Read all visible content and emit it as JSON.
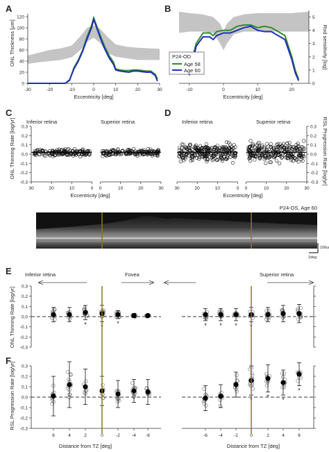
{
  "panels": {
    "A": {
      "label": "A",
      "ylabel": "ONL Thickness [µm]",
      "xlabel": "Eccentricity [deg]",
      "xticks": [
        "-30",
        "-20",
        "-10",
        "0",
        "10",
        "20",
        "30"
      ],
      "yticks": [
        "0",
        "20",
        "40",
        "60",
        "80",
        "100",
        "120"
      ]
    },
    "B": {
      "label": "B",
      "ylabel": "Rod sensitivity [log]",
      "xlabel": "Eccentricity [deg]",
      "xticks": [
        "-10",
        "0",
        "10",
        "20"
      ],
      "yticks": [
        "0",
        "1",
        "2",
        "3",
        "4",
        "5"
      ],
      "legend": {
        "title": "P24-OD",
        "items": [
          "Age 58",
          "Age 60"
        ]
      }
    },
    "C": {
      "label": "C",
      "ylabel": "ONL Thinning Rate [log/yr]",
      "xlabel": "Eccentricity [deg]",
      "region_left": "Inferior retina",
      "region_right": "Superior retina",
      "xticks": [
        "30",
        "20",
        "10",
        "0",
        "10",
        "20",
        "30"
      ],
      "yticks": [
        "-0.3",
        "-0.2",
        "-0.1",
        "0.0",
        "0.1",
        "0.2",
        "0.3"
      ]
    },
    "D": {
      "label": "D",
      "ylabel": "RSL Progression Rate [log/yr]",
      "xlabel": "Eccentricity [deg]",
      "region_left": "Inferior retina",
      "region_right": "Superior retina",
      "xticks": [
        "30",
        "20",
        "10",
        "0",
        "10",
        "20",
        "30"
      ],
      "yticks": [
        "-0.3",
        "-0.2",
        "-0.1",
        "0.0",
        "0.1",
        "0.2",
        "0.3"
      ]
    },
    "OCT": {
      "caption": "P24-OS, Age 60",
      "scale_um": "100um",
      "scale_deg": "1deg"
    },
    "E": {
      "label": "E",
      "ylabel": "ONL Thinning Rate [log/yr]",
      "region_left": "Inferior retina",
      "region_center": "Fovea",
      "region_right": "Superior retina",
      "yticks": [
        "-0.3",
        "-0.2",
        "-0.1",
        "0.0",
        "0.1",
        "0.2",
        "0.3"
      ]
    },
    "F": {
      "label": "F",
      "ylabel": "RSL Progression Rate [log/yr]",
      "xlabel_left": "Distance from TZ [deg]",
      "xlabel_right": "Distance from TZ [deg]",
      "xticks_left": [
        "6",
        "4",
        "2",
        "0",
        "-2",
        "-4",
        "-6"
      ],
      "xticks_right": [
        "-6",
        "-4",
        "-2",
        "0",
        "2",
        "4",
        "6"
      ],
      "yticks": [
        "-0.3",
        "-0.2",
        "-0.1",
        "0.0",
        "0.1",
        "0.2",
        "0.3"
      ]
    }
  },
  "colors": {
    "age58": "#2e8b2e",
    "age60": "#1f2fb5",
    "band": "#c4c4c4",
    "tz_line": "#8a7a1a"
  },
  "chart_data": [
    {
      "id": "A",
      "type": "line",
      "xlim": [
        -30,
        30
      ],
      "ylim": [
        0,
        125
      ],
      "normal_band": {
        "x": [
          -30,
          -25,
          -20,
          -15,
          -10,
          -6,
          -3,
          0,
          3,
          6,
          10,
          15,
          20,
          25,
          30
        ],
        "lower": [
          35,
          38,
          40,
          42,
          47,
          60,
          75,
          82,
          72,
          55,
          48,
          45,
          42,
          42,
          42
        ],
        "upper": [
          50,
          55,
          60,
          63,
          68,
          85,
          100,
          104,
          98,
          85,
          70,
          66,
          64,
          63,
          62
        ]
      },
      "series": [
        {
          "name": "Age 58",
          "x": [
            -13,
            -11,
            -9,
            -7,
            -5,
            -3,
            -1,
            0,
            1,
            3,
            5,
            7,
            9,
            10,
            12,
            14,
            16,
            18,
            20,
            22,
            24,
            26,
            28,
            29
          ],
          "y": [
            0,
            5,
            28,
            42,
            60,
            84,
            104,
            118,
            107,
            86,
            66,
            50,
            38,
            26,
            24,
            23,
            23,
            24,
            24,
            23,
            22,
            22,
            16,
            8
          ]
        },
        {
          "name": "Age 60",
          "x": [
            -13,
            -11,
            -9,
            -7,
            -5,
            -3,
            -1,
            0,
            1,
            3,
            5,
            7,
            9,
            10,
            12,
            14,
            16,
            18,
            20,
            22,
            24,
            26,
            28,
            29
          ],
          "y": [
            0,
            6,
            26,
            40,
            58,
            80,
            100,
            115,
            104,
            82,
            62,
            46,
            34,
            24,
            22,
            21,
            20,
            22,
            22,
            21,
            20,
            20,
            14,
            4
          ]
        }
      ]
    },
    {
      "id": "B",
      "type": "line",
      "xlim": [
        -13,
        25
      ],
      "ylim": [
        0,
        5.5
      ],
      "normal_band": {
        "x": [
          -13,
          -10,
          -6,
          -3,
          -1,
          0,
          1,
          3,
          6,
          10,
          15,
          20,
          25
        ],
        "lower": [
          3.8,
          3.9,
          3.9,
          3.8,
          3.0,
          2.5,
          3.0,
          3.7,
          3.9,
          3.9,
          3.9,
          3.9,
          3.9
        ],
        "upper": [
          5.4,
          5.3,
          5.2,
          5.0,
          4.5,
          3.9,
          4.5,
          5.0,
          5.2,
          5.3,
          5.3,
          5.3,
          5.4
        ]
      },
      "series": [
        {
          "name": "Age 58",
          "x": [
            -10,
            -9,
            -8,
            -6,
            -4,
            -3,
            -2,
            0,
            2,
            4,
            6,
            8,
            10,
            12,
            14,
            16,
            18,
            20,
            21,
            22
          ],
          "y": [
            0.8,
            2.0,
            3.0,
            3.8,
            3.8,
            3.6,
            3.9,
            4.0,
            4.0,
            4.3,
            4.4,
            4.4,
            4.2,
            4.3,
            4.2,
            3.9,
            3.6,
            2.0,
            1.0,
            0.3
          ]
        },
        {
          "name": "Age 60",
          "x": [
            -10,
            -9,
            -8,
            -6,
            -4,
            -3,
            -2,
            0,
            2,
            4,
            6,
            8,
            10,
            12,
            14,
            16,
            18,
            20,
            21,
            22
          ],
          "y": [
            0.6,
            1.6,
            2.8,
            3.5,
            3.5,
            3.3,
            3.6,
            3.8,
            3.8,
            4.0,
            4.2,
            4.3,
            4.0,
            3.9,
            3.9,
            3.6,
            3.3,
            1.8,
            0.8,
            0.2
          ]
        }
      ]
    },
    {
      "id": "C",
      "type": "scatter",
      "ylim": [
        -0.3,
        0.3
      ],
      "segments": [
        {
          "xlim": [
            30,
            0
          ]
        },
        {
          "xlim": [
            0,
            30
          ]
        }
      ],
      "spread": 0.05
    },
    {
      "id": "D",
      "type": "scatter",
      "ylim": [
        -0.3,
        0.3
      ],
      "segments": [
        {
          "xlim": [
            30,
            0
          ]
        },
        {
          "xlim": [
            0,
            30
          ]
        }
      ],
      "spread": 0.14
    },
    {
      "id": "E",
      "type": "scatter",
      "ylim": [
        -0.3,
        0.3
      ],
      "left": {
        "x": [
          6,
          4,
          2,
          0,
          -2,
          -4,
          -6
        ],
        "mean": [
          0.02,
          0.02,
          0.04,
          0.03,
          0.02,
          0.01,
          0.01
        ],
        "sd": [
          0.07,
          0.07,
          0.07,
          0.08,
          0.04,
          0.02,
          0.01
        ],
        "sig": [
          false,
          false,
          true,
          true,
          true,
          false,
          false
        ]
      },
      "right": {
        "x": [
          -6,
          -4,
          -2,
          0,
          2,
          4,
          6
        ],
        "mean": [
          0.02,
          0.02,
          0.02,
          0.02,
          0.02,
          0.03,
          0.03
        ],
        "sd": [
          0.06,
          0.06,
          0.06,
          0.07,
          0.07,
          0.08,
          0.09
        ],
        "sig": [
          true,
          true,
          true,
          true,
          false,
          false,
          false
        ]
      }
    },
    {
      "id": "F",
      "type": "scatter",
      "ylim": [
        -0.3,
        0.3
      ],
      "left": {
        "x": [
          6,
          4,
          2,
          0,
          -2,
          -4,
          -6
        ],
        "mean": [
          0.01,
          0.12,
          0.1,
          0.06,
          0.03,
          0.06,
          0.05
        ],
        "sd": [
          0.19,
          0.22,
          0.17,
          0.14,
          0.13,
          0.11,
          0.12
        ],
        "sig": [
          false,
          false,
          false,
          false,
          false,
          false,
          false
        ]
      },
      "right": {
        "x": [
          -6,
          -4,
          -2,
          0,
          2,
          4,
          6
        ],
        "mean": [
          -0.01,
          0.01,
          0.12,
          0.16,
          0.18,
          0.14,
          0.22
        ],
        "sd": [
          0.12,
          0.11,
          0.12,
          0.14,
          0.13,
          0.12,
          0.11
        ],
        "sig": [
          false,
          false,
          false,
          true,
          true,
          true,
          true
        ]
      }
    }
  ]
}
